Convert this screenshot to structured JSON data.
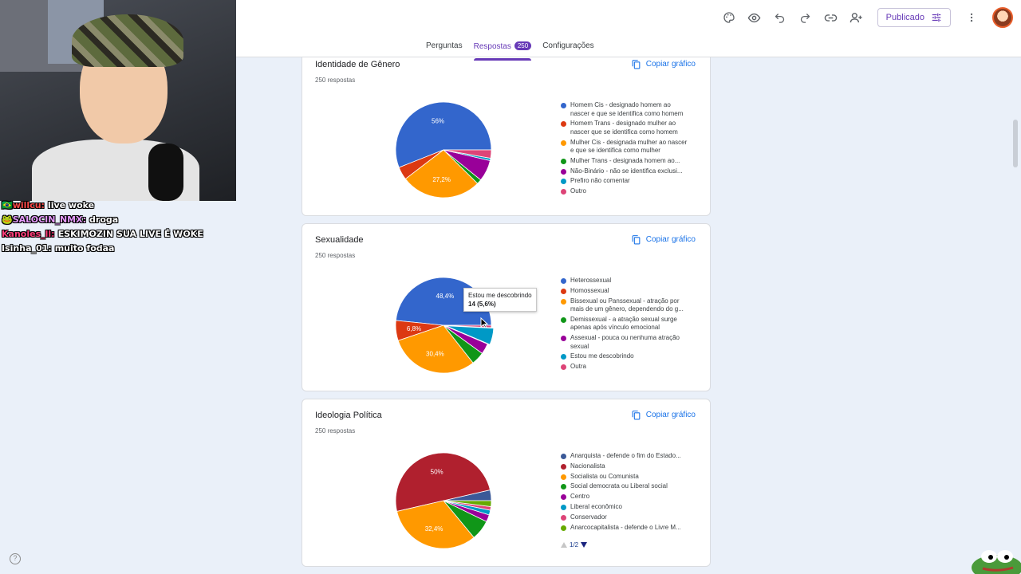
{
  "header": {
    "publish_label": "Publicado",
    "tabs": [
      {
        "label": "Perguntas",
        "active": false
      },
      {
        "label": "Respostas",
        "active": true,
        "badge": "250"
      },
      {
        "label": "Configurações",
        "active": false
      }
    ],
    "icons": [
      "palette-icon",
      "preview-icon",
      "undo-icon",
      "redo-icon",
      "link-icon",
      "add-collaborator-icon",
      "tune-icon",
      "more-vert-icon",
      "avatar"
    ]
  },
  "chat": [
    {
      "user": "🇧🇷willcu:",
      "user_color": "#ff4a4a",
      "message": "live woke"
    },
    {
      "user": "🐸SALOCIN_NMX:",
      "user_color": "#e79bff",
      "message": "droga"
    },
    {
      "user": "Kanoles_ll:",
      "user_color": "#ff3d7a",
      "message": "ESKIMOZIN SUA LIVE É WOKE"
    },
    {
      "user": "Isinha_01:",
      "user_color": "#ffffff",
      "message": "muito fodaa"
    }
  ],
  "copy_label": "Copiar gráfico",
  "cards": [
    {
      "title": "Identidade de Gênero",
      "subtitle": "250 respostas",
      "legend": [
        {
          "label": "Homem Cis - designado homem ao nascer e que se identifica como homem",
          "color": "#3366cc"
        },
        {
          "label": "Homem Trans - designado mulher ao nascer que se identifica como homem",
          "color": "#dc3912"
        },
        {
          "label": "Mulher Cis - designada mulher ao nascer e que se identifica como mulher",
          "color": "#ff9900"
        },
        {
          "label": "Mulher Trans - designada homem ao...",
          "color": "#109618"
        },
        {
          "label": "Não-Binário - não se identifica exclusi...",
          "color": "#990099"
        },
        {
          "label": "Prefiro não comentar",
          "color": "#0099c6"
        },
        {
          "label": "Outro",
          "color": "#dd4477"
        }
      ]
    },
    {
      "title": "Sexualidade",
      "subtitle": "250 respostas",
      "tooltip_label": "Estou me descobrindo",
      "tooltip_value": "14 (5,6%)",
      "legend": [
        {
          "label": "Heterossexual",
          "color": "#3366cc"
        },
        {
          "label": "Homossexual",
          "color": "#dc3912"
        },
        {
          "label": "Bissexual ou Panssexual - atração por mais de um gênero, dependendo do g...",
          "color": "#ff9900"
        },
        {
          "label": "Demissexual - a atração sexual surge apenas após vínculo emocional",
          "color": "#109618"
        },
        {
          "label": "Assexual - pouca ou nenhuma atração sexual",
          "color": "#990099"
        },
        {
          "label": "Estou me descobrindo",
          "color": "#0099c6"
        },
        {
          "label": "Outra",
          "color": "#dd4477"
        }
      ]
    },
    {
      "title": "Ideologia Política",
      "subtitle": "250 respostas",
      "pager": "1/2",
      "legend": [
        {
          "label": "Anarquista - defende o fim do Estado...",
          "color": "#3b5998"
        },
        {
          "label": "Nacionalista",
          "color": "#b0202e"
        },
        {
          "label": "Socialista ou Comunista",
          "color": "#ff9900"
        },
        {
          "label": "Social democrata ou Liberal social",
          "color": "#109618"
        },
        {
          "label": "Centro",
          "color": "#990099"
        },
        {
          "label": "Liberal econômico",
          "color": "#0099c6"
        },
        {
          "label": "Conservador",
          "color": "#dd4477"
        },
        {
          "label": "Anarcocapitalista - defende o Livre M...",
          "color": "#66aa00"
        }
      ]
    }
  ],
  "chart_data": [
    {
      "type": "pie",
      "title": "Identidade de Gênero",
      "slices": [
        {
          "label": "Homem Cis - designado homem ao nascer e que se identifica como homem",
          "value": 56,
          "color": "#3366cc",
          "label_text": "56%"
        },
        {
          "label": "Homem Trans - designado mulher ao nascer que se identifica como homem",
          "value": 4.4,
          "color": "#dc3912"
        },
        {
          "label": "Mulher Cis - designada mulher ao nascer e que se identifica como mulher",
          "value": 27.2,
          "color": "#ff9900",
          "label_text": "27,2%"
        },
        {
          "label": "Mulher Trans - designada homem ao...",
          "value": 1.6,
          "color": "#109618"
        },
        {
          "label": "Não-Binário - não se identifica exclusi...",
          "value": 7.2,
          "color": "#990099"
        },
        {
          "label": "Prefiro não comentar",
          "value": 0.8,
          "color": "#0099c6"
        },
        {
          "label": "Outro",
          "value": 2.8,
          "color": "#dd4477"
        }
      ]
    },
    {
      "type": "pie",
      "title": "Sexualidade",
      "slices": [
        {
          "label": "Heterossexual",
          "value": 48.4,
          "color": "#3366cc",
          "label_text": "48,4%"
        },
        {
          "label": "Homossexual",
          "value": 6.8,
          "color": "#dc3912",
          "label_text": "6,8%"
        },
        {
          "label": "Bissexual ou Panssexual - atração por mais de um gênero, dependendo do g...",
          "value": 30.4,
          "color": "#ff9900",
          "label_text": "30,4%"
        },
        {
          "label": "Demissexual - a atração sexual surge apenas após vínculo emocional",
          "value": 4.4,
          "color": "#109618"
        },
        {
          "label": "Assexual - pouca ou nenhuma atração sexual",
          "value": 3.6,
          "color": "#990099"
        },
        {
          "label": "Estou me descobrindo",
          "value": 5.6,
          "color": "#0099c6",
          "highlight": true
        },
        {
          "label": "Outra",
          "value": 0.8,
          "color": "#dd4477"
        }
      ]
    },
    {
      "type": "pie",
      "title": "Ideologia Política",
      "slices": [
        {
          "label": "Anarquista - defende o fim do Estado...",
          "value": 3.6,
          "color": "#3b5998"
        },
        {
          "label": "Nacionalista",
          "value": 50,
          "color": "#b0202e",
          "label_text": "50%"
        },
        {
          "label": "Socialista ou Comunista",
          "value": 32.4,
          "color": "#ff9900",
          "label_text": "32,4%"
        },
        {
          "label": "Social democrata ou Liberal social",
          "value": 6.8,
          "color": "#109618"
        },
        {
          "label": "Centro",
          "value": 2.4,
          "color": "#990099"
        },
        {
          "label": "Liberal econômico",
          "value": 1.6,
          "color": "#0099c6"
        },
        {
          "label": "Conservador",
          "value": 1.2,
          "color": "#dd4477"
        },
        {
          "label": "Anarcocapitalista - defende o Livre M...",
          "value": 2.0,
          "color": "#66aa00"
        }
      ]
    }
  ]
}
